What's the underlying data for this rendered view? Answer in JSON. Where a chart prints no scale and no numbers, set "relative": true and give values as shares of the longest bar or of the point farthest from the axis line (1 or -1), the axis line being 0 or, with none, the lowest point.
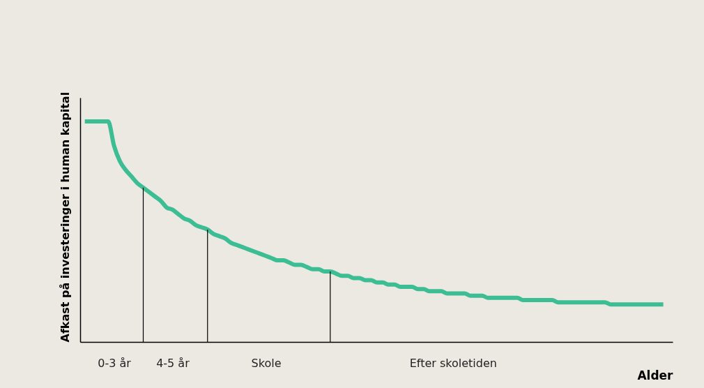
{
  "chart_data": {
    "type": "line",
    "relative": true,
    "xlabel": "Alder",
    "ylabel": "Afkast på investeringer i human kapital",
    "tick_labels": "x",
    "grid": false,
    "marker": "none",
    "line_style": "solid",
    "categories": [
      null,
      null,
      null,
      null,
      null,
      "0-3 år",
      null,
      null,
      null,
      null,
      null,
      null,
      null,
      null,
      null,
      "4-5 år",
      null,
      null,
      null,
      null,
      null,
      null,
      null,
      null,
      null,
      null,
      null,
      null,
      null,
      null,
      null,
      "Skole",
      null,
      null,
      null,
      null,
      null,
      null,
      null,
      null,
      null,
      null,
      null,
      null,
      null,
      null,
      null,
      null,
      null,
      null,
      null,
      null,
      null,
      null,
      null,
      null,
      null,
      null,
      null,
      null,
      null,
      null,
      null,
      "Efter skoletiden",
      null,
      null,
      null,
      null,
      null,
      null,
      null,
      null,
      null,
      null,
      null,
      null,
      null,
      null,
      null,
      null,
      null,
      null,
      null,
      null,
      null,
      null,
      null,
      null,
      null,
      null,
      null,
      null,
      null,
      null,
      null,
      null,
      null,
      null,
      null,
      null
    ],
    "series": [
      {
        "color": "#3dbd93",
        "values": [
          1,
          1,
          1,
          1,
          1,
          0.89,
          0.82,
          0.78,
          0.75,
          0.72,
          0.7,
          0.68,
          0.66,
          0.64,
          0.61,
          0.6,
          0.58,
          0.56,
          0.55,
          0.53,
          0.52,
          0.51,
          0.49,
          0.48,
          0.47,
          0.45,
          0.44,
          0.43,
          0.42,
          0.41,
          0.4,
          0.39,
          0.38,
          0.37,
          0.37,
          0.36,
          0.35,
          0.35,
          0.34,
          0.33,
          0.33,
          0.32,
          0.32,
          0.31,
          0.3,
          0.3,
          0.29,
          0.29,
          0.28,
          0.28,
          0.27,
          0.27,
          0.26,
          0.26,
          0.25,
          0.25,
          0.25,
          0.24,
          0.24,
          0.23,
          0.23,
          0.23,
          0.22,
          0.22,
          0.22,
          0.22,
          0.21,
          0.21,
          0.21,
          0.2,
          0.2,
          0.2,
          0.2,
          0.2,
          0.2,
          0.19,
          0.19,
          0.19,
          0.19,
          0.19,
          0.19,
          0.18,
          0.18,
          0.18,
          0.18,
          0.18,
          0.18,
          0.18,
          0.18,
          0.18,
          0.17,
          0.17,
          0.17,
          0.17,
          0.17,
          0.17,
          0.17,
          0.17,
          0.17,
          0.17
        ]
      },
      {
        "type": "bar",
        "color": "#000000",
        "values": [
          null,
          null,
          null,
          null,
          null,
          null,
          null,
          null,
          null,
          null,
          0.7,
          null,
          null,
          null,
          null,
          null,
          null,
          null,
          null,
          null,
          null,
          0.51,
          null,
          null,
          null,
          null,
          null,
          null,
          null,
          null,
          null,
          null,
          null,
          null,
          null,
          null,
          null,
          null,
          null,
          null,
          null,
          null,
          0.32,
          null,
          null,
          null,
          null,
          null,
          null,
          null,
          null,
          null,
          null,
          null,
          null,
          null,
          null,
          null,
          null,
          null,
          null,
          null,
          null,
          null,
          null,
          null,
          null,
          null,
          null,
          null,
          null,
          null,
          null,
          null,
          null,
          null,
          null,
          null,
          null,
          null,
          null,
          null,
          null,
          null,
          null,
          null,
          null,
          null,
          null,
          null,
          null,
          null,
          null,
          null,
          null,
          null,
          null,
          null,
          null,
          null
        ]
      }
    ]
  }
}
